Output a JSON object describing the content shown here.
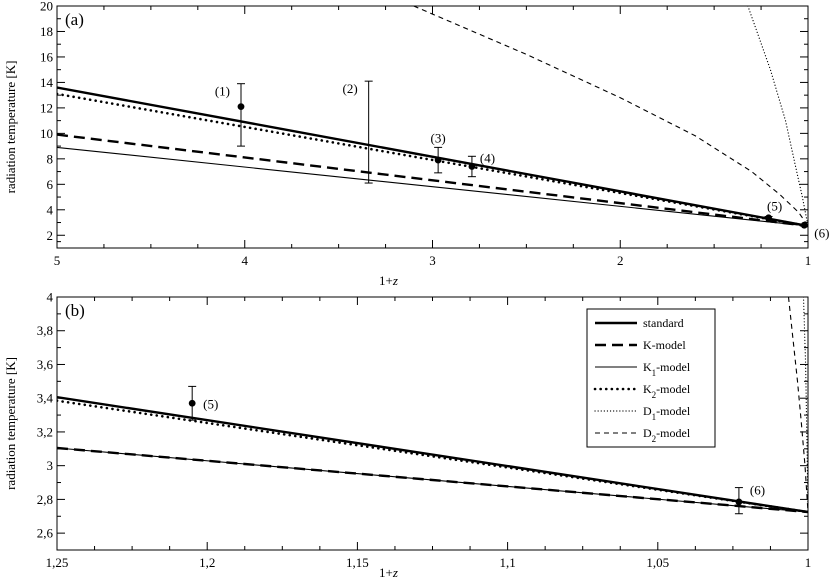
{
  "chart_data": [
    {
      "panel": "(a)",
      "type": "line",
      "xlabel": "1+z",
      "ylabel": "radiation temperature [K]",
      "xlim": [
        5,
        1
      ],
      "ylim": [
        1,
        20
      ],
      "xticks": [
        5,
        4,
        3,
        2,
        1
      ],
      "xtick_labels": [
        "5",
        "4",
        "3",
        "2",
        "1"
      ],
      "yticks": [
        2,
        4,
        6,
        8,
        10,
        12,
        14,
        16,
        18,
        20
      ],
      "ytick_labels": [
        "2",
        "4",
        "6",
        "8",
        "10",
        "12",
        "14",
        "16",
        "18",
        "20"
      ],
      "series": [
        {
          "name": "standard",
          "style": "thick-solid",
          "x": [
            5,
            1
          ],
          "y": [
            13.6,
            2.725
          ]
        },
        {
          "name": "K-model",
          "style": "thick-dash",
          "x": [
            5,
            1
          ],
          "y": [
            9.9,
            2.725
          ]
        },
        {
          "name": "K1-model",
          "style": "thin-solid",
          "x": [
            5,
            1
          ],
          "y": [
            8.9,
            2.725
          ]
        },
        {
          "name": "K2-model",
          "style": "thick-dot",
          "x": [
            5,
            1
          ],
          "y": [
            13.1,
            2.725
          ]
        },
        {
          "name": "D1-model",
          "style": "thin-dot",
          "x": [
            1.32,
            1.2,
            1.12,
            1.06,
            1.03,
            1.0
          ],
          "y": [
            20,
            15,
            11,
            7,
            5,
            2.725
          ]
        },
        {
          "name": "D2-model",
          "style": "thin-dash",
          "x": [
            3.1,
            2.5,
            2.0,
            1.6,
            1.3,
            1.15,
            1.05,
            1.0
          ],
          "y": [
            20,
            16.2,
            12.8,
            9.8,
            7.0,
            5.2,
            3.8,
            2.725
          ]
        }
      ],
      "points": [
        {
          "label": "(1)",
          "x": 4.02,
          "y": 12.1,
          "lo": 9.0,
          "hi": 13.9,
          "marker": true
        },
        {
          "label": "(2)",
          "x": 3.34,
          "y": null,
          "lo": 6.1,
          "hi": 14.1,
          "marker": false
        },
        {
          "label": "(3)",
          "x": 2.97,
          "y": 7.9,
          "lo": 6.9,
          "hi": 8.9,
          "marker": true
        },
        {
          "label": "(4)",
          "x": 2.79,
          "y": 7.4,
          "lo": 6.6,
          "hi": 8.2,
          "marker": true
        },
        {
          "label": "(5)",
          "x": 1.21,
          "y": 3.37,
          "lo": 3.27,
          "hi": 3.47,
          "marker": true
        },
        {
          "label": "(6)",
          "x": 1.02,
          "y": 2.79,
          "lo": 2.72,
          "hi": 2.86,
          "marker": true
        }
      ]
    },
    {
      "panel": "(b)",
      "type": "line",
      "xlabel": "1+z",
      "ylabel": "radiation temperature [K]",
      "xlim": [
        1.25,
        1.0
      ],
      "ylim": [
        2.5,
        4.0
      ],
      "xticks": [
        1.25,
        1.2,
        1.15,
        1.1,
        1.05,
        1.0
      ],
      "xtick_labels": [
        "1,25",
        "1,2",
        "1,15",
        "1,1",
        "1,05",
        "1"
      ],
      "yticks": [
        2.6,
        2.8,
        3.0,
        3.2,
        3.4,
        3.6,
        3.8,
        4.0
      ],
      "ytick_labels": [
        "2,6",
        "2,8",
        "3",
        "3,2",
        "3,4",
        "3,6",
        "3,8",
        "4"
      ],
      "series": [
        {
          "name": "standard",
          "style": "thick-solid",
          "x": [
            1.25,
            1.0
          ],
          "y": [
            3.406,
            2.725
          ]
        },
        {
          "name": "K-model",
          "style": "thick-dash",
          "x": [
            1.25,
            1.0
          ],
          "y": [
            3.105,
            2.725
          ]
        },
        {
          "name": "K1-model",
          "style": "thin-solid",
          "x": [
            1.25,
            1.0
          ],
          "y": [
            3.105,
            2.725
          ]
        },
        {
          "name": "K2-model",
          "style": "thick-dot",
          "x": [
            1.25,
            1.0
          ],
          "y": [
            3.385,
            2.725
          ]
        },
        {
          "name": "D1-model",
          "style": "thin-dot",
          "x": [
            1.0015,
            1.0008,
            1.0004,
            1.0
          ],
          "y": [
            4.0,
            3.6,
            3.2,
            2.725
          ]
        },
        {
          "name": "D2-model",
          "style": "thin-dash",
          "x": [
            1.0065,
            1.005,
            1.0035,
            1.0022,
            1.001,
            1.0
          ],
          "y": [
            4.0,
            3.75,
            3.5,
            3.25,
            3.0,
            2.725
          ]
        }
      ],
      "points": [
        {
          "label": "(5)",
          "x": 1.205,
          "y": 3.37,
          "lo": 3.27,
          "hi": 3.47,
          "marker": true
        },
        {
          "label": "(6)",
          "x": 1.023,
          "y": 2.785,
          "lo": 2.715,
          "hi": 2.87,
          "marker": true
        }
      ],
      "legend": {
        "placement": "top-right",
        "entries": [
          {
            "label": "standard",
            "style": "thick-solid"
          },
          {
            "label": "K-model",
            "style": "thick-dash"
          },
          {
            "label": "K1-model",
            "style": "thin-solid"
          },
          {
            "label": "K2-model",
            "style": "thick-dot"
          },
          {
            "label": "D1-model",
            "style": "thin-dot"
          },
          {
            "label": "D2-model",
            "style": "thin-dash"
          }
        ]
      }
    }
  ]
}
